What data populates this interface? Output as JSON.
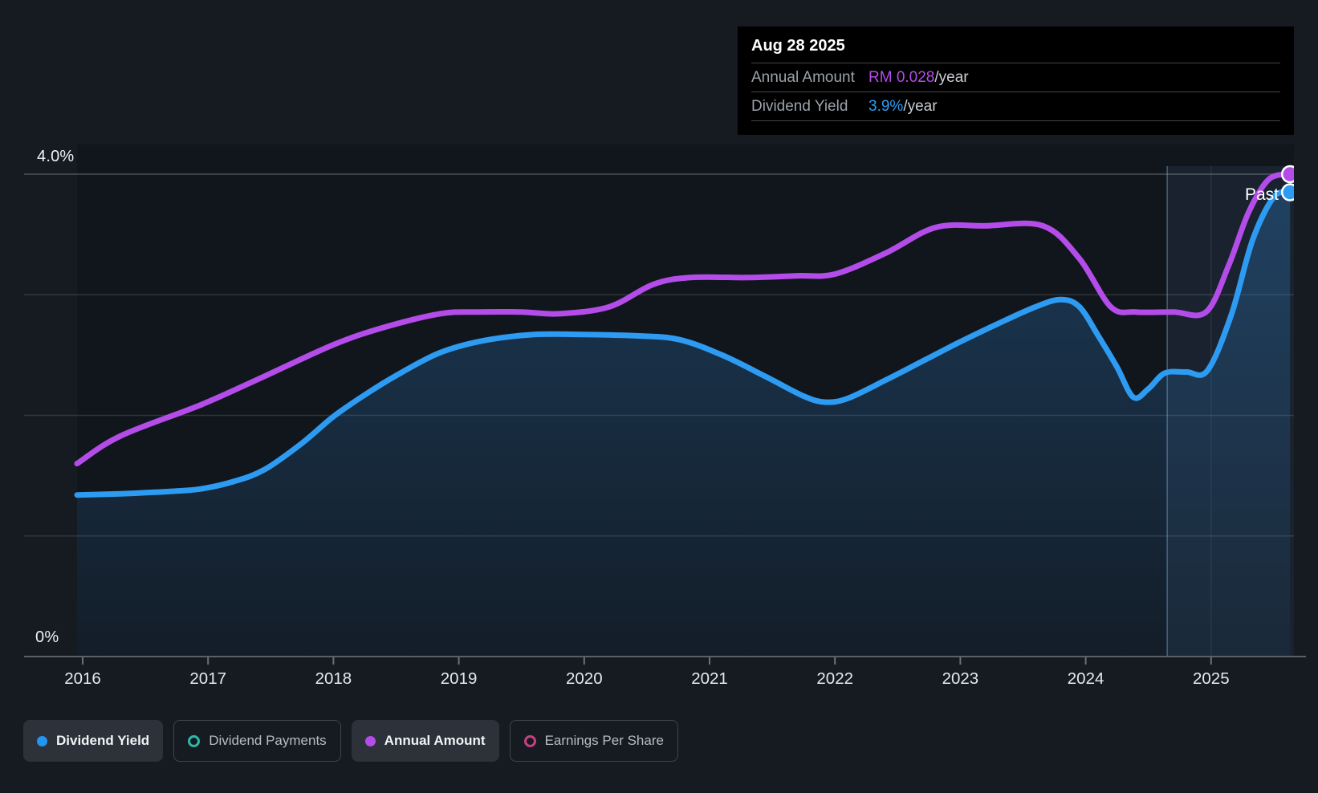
{
  "tooltip": {
    "date": "Aug 28 2025",
    "rows": [
      {
        "label": "Annual Amount",
        "value": "RM 0.028",
        "suffix": "/year",
        "color": "#B44CE9"
      },
      {
        "label": "Dividend Yield",
        "value": "3.9%",
        "suffix": "/year",
        "color": "#2B9DF4"
      }
    ]
  },
  "chart": {
    "past_label": "Past",
    "y_axis_top_label": "4.0%",
    "y_axis_bottom_label": "0%"
  },
  "legend": [
    {
      "label": "Dividend Yield",
      "swatch": "filled",
      "color": "#2196F3",
      "active": true
    },
    {
      "label": "Dividend Payments",
      "swatch": "ring",
      "color": "#2CB9A6",
      "active": false
    },
    {
      "label": "Annual Amount",
      "swatch": "filled",
      "color": "#B44CE9",
      "active": true
    },
    {
      "label": "Earnings Per Share",
      "swatch": "ring",
      "color": "#C7407E",
      "active": false
    }
  ],
  "colors": {
    "page_bg": "#161A21",
    "plot_bg": "#11161D",
    "past_band": "rgba(96,150,200,0.10)",
    "grid": "rgba(255,255,255,0.13)",
    "grid_top": "rgba(255,255,255,0.25)",
    "axis": "#5A6068",
    "tick": "#6B7177",
    "x_label": "#E6E9EB",
    "year_guide": "rgba(255,255,255,0.07)",
    "divider": "rgba(130,175,215,0.45)",
    "blue": "#2E9BF2",
    "purple": "#B44CE9",
    "area_top": "rgba(46,125,195,0.34)",
    "area_bottom": "rgba(46,125,195,0.07)",
    "dot_stroke": "#FFFFFF"
  },
  "chart_data": {
    "type": "line",
    "title": "Dividend history",
    "x_axis_years": [
      2016,
      2017,
      2018,
      2019,
      2020,
      2021,
      2022,
      2023,
      2024,
      2025
    ],
    "x_range": [
      2015.955,
      2025.65
    ],
    "y_axis": {
      "label_top": "4.0%",
      "label_bottom": "0%",
      "range_pct": [
        0,
        4.07
      ],
      "gridline_interval_pct": 1.0
    },
    "past_divider_year": 2024.65,
    "grid": true,
    "legend_position": "bottom",
    "hover_readout": {
      "date": "Aug 28 2025",
      "annual_amount": "RM 0.028/year",
      "dividend_yield": "3.9%/year"
    },
    "rm_to_pct_scale": 142.857,
    "series": [
      {
        "name": "Dividend Yield",
        "unit": "%",
        "style": "area-line",
        "color": "#2E9BF2",
        "visible": true,
        "points": [
          [
            2015.955,
            1.34
          ],
          [
            2016.3,
            1.35
          ],
          [
            2016.7,
            1.37
          ],
          [
            2016.94,
            1.39
          ],
          [
            2017.2,
            1.45
          ],
          [
            2017.45,
            1.55
          ],
          [
            2017.75,
            1.77
          ],
          [
            2018.0,
            1.99
          ],
          [
            2018.25,
            2.17
          ],
          [
            2018.5,
            2.33
          ],
          [
            2018.85,
            2.52
          ],
          [
            2019.2,
            2.62
          ],
          [
            2019.6,
            2.67
          ],
          [
            2020.0,
            2.67
          ],
          [
            2020.4,
            2.66
          ],
          [
            2020.75,
            2.63
          ],
          [
            2021.1,
            2.5
          ],
          [
            2021.45,
            2.32
          ],
          [
            2021.75,
            2.16
          ],
          [
            2021.92,
            2.11
          ],
          [
            2022.1,
            2.14
          ],
          [
            2022.4,
            2.29
          ],
          [
            2022.7,
            2.45
          ],
          [
            2023.0,
            2.61
          ],
          [
            2023.3,
            2.76
          ],
          [
            2023.6,
            2.9
          ],
          [
            2023.8,
            2.96
          ],
          [
            2023.95,
            2.9
          ],
          [
            2024.1,
            2.66
          ],
          [
            2024.25,
            2.4
          ],
          [
            2024.38,
            2.15
          ],
          [
            2024.5,
            2.22
          ],
          [
            2024.63,
            2.35
          ],
          [
            2024.8,
            2.36
          ],
          [
            2024.97,
            2.37
          ],
          [
            2025.16,
            2.83
          ],
          [
            2025.33,
            3.45
          ],
          [
            2025.5,
            3.81
          ],
          [
            2025.63,
            3.85
          ]
        ]
      },
      {
        "name": "Annual Amount",
        "unit": "RM/year",
        "style": "line",
        "color": "#B44CE9",
        "visible": true,
        "points": [
          [
            2015.955,
            0.0112
          ],
          [
            2016.3,
            0.0128
          ],
          [
            2016.94,
            0.0146
          ],
          [
            2017.4,
            0.0161
          ],
          [
            2018.0,
            0.0181
          ],
          [
            2018.4,
            0.0191
          ],
          [
            2018.85,
            0.0199
          ],
          [
            2019.15,
            0.02
          ],
          [
            2019.5,
            0.02
          ],
          [
            2019.8,
            0.0199
          ],
          [
            2020.2,
            0.0203
          ],
          [
            2020.55,
            0.0216
          ],
          [
            2020.85,
            0.022
          ],
          [
            2021.3,
            0.022
          ],
          [
            2021.7,
            0.0221
          ],
          [
            2022.0,
            0.0222
          ],
          [
            2022.4,
            0.0234
          ],
          [
            2022.8,
            0.0249
          ],
          [
            2023.2,
            0.025
          ],
          [
            2023.66,
            0.025
          ],
          [
            2023.95,
            0.0231
          ],
          [
            2024.2,
            0.0203
          ],
          [
            2024.4,
            0.02
          ],
          [
            2024.7,
            0.02
          ],
          [
            2024.96,
            0.02
          ],
          [
            2025.14,
            0.0227
          ],
          [
            2025.3,
            0.0258
          ],
          [
            2025.46,
            0.0277
          ],
          [
            2025.63,
            0.028
          ]
        ]
      },
      {
        "name": "Dividend Payments",
        "style": "ring-legend-only",
        "color": "#2CB9A6",
        "visible": false,
        "points": []
      },
      {
        "name": "Earnings Per Share",
        "style": "ring-legend-only",
        "color": "#C7407E",
        "visible": false,
        "points": []
      }
    ]
  }
}
